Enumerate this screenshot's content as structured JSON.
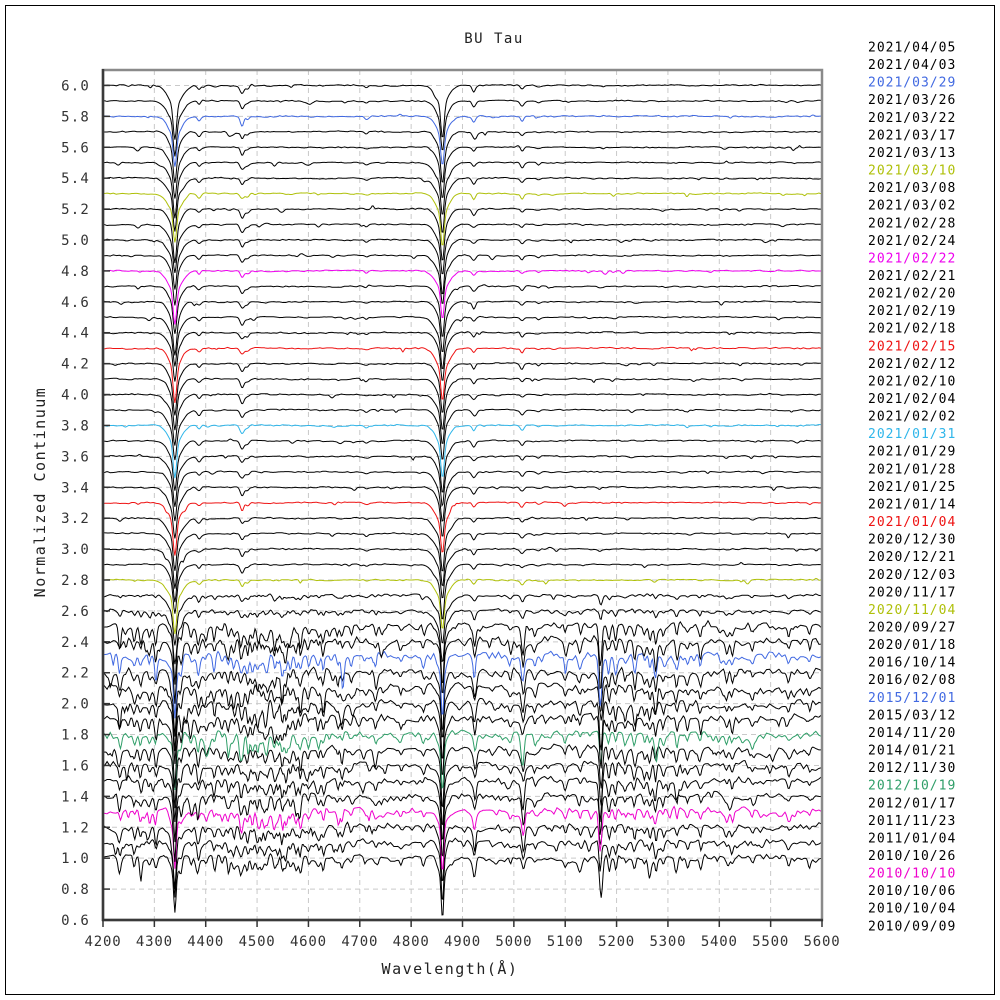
{
  "chart_data": {
    "type": "line",
    "title": "BU Tau",
    "xlabel": "Wavelength(Å)",
    "ylabel": "Normalized Continuum",
    "xlim": [
      4200,
      5600
    ],
    "ylim": [
      0.6,
      6.1
    ],
    "grid": true,
    "x_ticks": [
      4200,
      4300,
      4400,
      4500,
      4600,
      4700,
      4800,
      4900,
      5000,
      5100,
      5200,
      5300,
      5400,
      5500,
      5600
    ],
    "y_ticks": [
      0.6,
      0.8,
      1.0,
      1.2,
      1.4,
      1.6,
      1.8,
      2.0,
      2.2,
      2.4,
      2.6,
      2.8,
      3.0,
      3.2,
      3.4,
      3.6,
      3.8,
      4.0,
      4.2,
      4.4,
      4.6,
      4.8,
      5.0,
      5.2,
      5.4,
      5.6,
      5.8,
      6.0
    ],
    "description": "Time series of normalized spectra of BU Tau, vertically offset by 0.1; date labels listed top-to-bottom on the right edge match the spectra top-to-bottom",
    "balmer_lines": [
      {
        "name": "H-gamma",
        "center": 4340
      },
      {
        "name": "H-beta",
        "center": 4861
      }
    ],
    "be_phase_lines": [
      [
        4387,
        0.025
      ],
      [
        4471,
        0.045
      ],
      [
        4481,
        0.018
      ],
      [
        4713,
        0.012
      ],
      [
        4922,
        0.032
      ],
      [
        5016,
        0.026
      ],
      [
        5048,
        0.01
      ]
    ],
    "shell_phase_lines": [
      [
        4233,
        0.1
      ],
      [
        4179,
        0.06
      ],
      [
        4261,
        0.06
      ],
      [
        4273,
        0.07
      ],
      [
        4290,
        0.06
      ],
      [
        4303,
        0.09
      ],
      [
        4352,
        0.09
      ],
      [
        4372,
        0.06
      ],
      [
        4385,
        0.08
      ],
      [
        4400,
        0.05
      ],
      [
        4417,
        0.08
      ],
      [
        4432,
        0.05
      ],
      [
        4444,
        0.07
      ],
      [
        4455,
        0.06
      ],
      [
        4468,
        0.07
      ],
      [
        4482,
        0.08
      ],
      [
        4491,
        0.06
      ],
      [
        4501,
        0.08
      ],
      [
        4508,
        0.06
      ],
      [
        4515,
        0.08
      ],
      [
        4520,
        0.07
      ],
      [
        4534,
        0.08
      ],
      [
        4541,
        0.06
      ],
      [
        4549,
        0.11
      ],
      [
        4556,
        0.09
      ],
      [
        4564,
        0.06
      ],
      [
        4576,
        0.08
      ],
      [
        4584,
        0.11
      ],
      [
        4600,
        0.05
      ],
      [
        4620,
        0.06
      ],
      [
        4629,
        0.08
      ],
      [
        4657,
        0.05
      ],
      [
        4666,
        0.06
      ],
      [
        4684,
        0.04
      ],
      [
        4731,
        0.06
      ],
      [
        4780,
        0.04
      ],
      [
        4824,
        0.05
      ],
      [
        4924,
        0.11
      ],
      [
        4993,
        0.05
      ],
      [
        5018,
        0.13
      ],
      [
        5041,
        0.05
      ],
      [
        5100,
        0.06
      ],
      [
        5129,
        0.05
      ],
      [
        5169,
        0.24
      ],
      [
        5185,
        0.09
      ],
      [
        5198,
        0.08
      ],
      [
        5217,
        0.06
      ],
      [
        5235,
        0.09
      ],
      [
        5254,
        0.06
      ],
      [
        5265,
        0.08
      ],
      [
        5276,
        0.1
      ],
      [
        5291,
        0.06
      ],
      [
        5317,
        0.09
      ],
      [
        5338,
        0.05
      ],
      [
        5363,
        0.07
      ],
      [
        5414,
        0.05
      ],
      [
        5425,
        0.06
      ],
      [
        5465,
        0.04
      ],
      [
        5535,
        0.05
      ],
      [
        5576,
        0.04
      ]
    ],
    "series": [
      {
        "date": "2021/04/05",
        "color": "#000000",
        "offset": 6.0,
        "shell": 0
      },
      {
        "date": "2021/04/03",
        "color": "#000000",
        "offset": 5.9,
        "shell": 0
      },
      {
        "date": "2021/03/29",
        "color": "#4169E1",
        "offset": 5.8,
        "shell": 0
      },
      {
        "date": "2021/03/26",
        "color": "#000000",
        "offset": 5.7,
        "shell": 0
      },
      {
        "date": "2021/03/22",
        "color": "#000000",
        "offset": 5.6,
        "shell": 0
      },
      {
        "date": "2021/03/17",
        "color": "#000000",
        "offset": 5.5,
        "shell": 0
      },
      {
        "date": "2021/03/13",
        "color": "#000000",
        "offset": 5.4,
        "shell": 0
      },
      {
        "date": "2021/03/10",
        "color": "#AFC00A",
        "offset": 5.3,
        "shell": 0
      },
      {
        "date": "2021/03/08",
        "color": "#000000",
        "offset": 5.2,
        "shell": 0
      },
      {
        "date": "2021/03/02",
        "color": "#000000",
        "offset": 5.1,
        "shell": 0
      },
      {
        "date": "2021/02/28",
        "color": "#000000",
        "offset": 5.0,
        "shell": 0
      },
      {
        "date": "2021/02/24",
        "color": "#000000",
        "offset": 4.9,
        "shell": 0
      },
      {
        "date": "2021/02/22",
        "color": "#EE00EE",
        "offset": 4.8,
        "shell": 0
      },
      {
        "date": "2021/02/21",
        "color": "#000000",
        "offset": 4.7,
        "shell": 0
      },
      {
        "date": "2021/02/20",
        "color": "#000000",
        "offset": 4.6,
        "shell": 0
      },
      {
        "date": "2021/02/19",
        "color": "#000000",
        "offset": 4.5,
        "shell": 0
      },
      {
        "date": "2021/02/18",
        "color": "#000000",
        "offset": 4.4,
        "shell": 0
      },
      {
        "date": "2021/02/15",
        "color": "#EE1212",
        "offset": 4.3,
        "shell": 0
      },
      {
        "date": "2021/02/12",
        "color": "#000000",
        "offset": 4.2,
        "shell": 0
      },
      {
        "date": "2021/02/10",
        "color": "#000000",
        "offset": 4.1,
        "shell": 0
      },
      {
        "date": "2021/02/04",
        "color": "#000000",
        "offset": 4.0,
        "shell": 0
      },
      {
        "date": "2021/02/02",
        "color": "#000000",
        "offset": 3.9,
        "shell": 0
      },
      {
        "date": "2021/01/31",
        "color": "#2FB6EA",
        "offset": 3.8,
        "shell": 0
      },
      {
        "date": "2021/01/29",
        "color": "#000000",
        "offset": 3.7,
        "shell": 0
      },
      {
        "date": "2021/01/28",
        "color": "#000000",
        "offset": 3.6,
        "shell": 0
      },
      {
        "date": "2021/01/25",
        "color": "#000000",
        "offset": 3.5,
        "shell": 0
      },
      {
        "date": "2021/01/14",
        "color": "#000000",
        "offset": 3.4,
        "shell": 0
      },
      {
        "date": "2021/01/04",
        "color": "#EE1212",
        "offset": 3.3,
        "shell": 0
      },
      {
        "date": "2020/12/30",
        "color": "#000000",
        "offset": 3.2,
        "shell": 0
      },
      {
        "date": "2020/12/21",
        "color": "#000000",
        "offset": 3.1,
        "shell": 0
      },
      {
        "date": "2020/12/03",
        "color": "#000000",
        "offset": 3.0,
        "shell": 0
      },
      {
        "date": "2020/11/17",
        "color": "#000000",
        "offset": 2.9,
        "shell": 0
      },
      {
        "date": "2020/11/04",
        "color": "#AFC00A",
        "offset": 2.8,
        "shell": 0
      },
      {
        "date": "2020/09/27",
        "color": "#000000",
        "offset": 2.7,
        "shell": 0.18
      },
      {
        "date": "2020/01/18",
        "color": "#000000",
        "offset": 2.6,
        "shell": 0.3
      },
      {
        "date": "2016/10/14",
        "color": "#000000",
        "offset": 2.5,
        "shell": 0.95
      },
      {
        "date": "2016/02/08",
        "color": "#000000",
        "offset": 2.4,
        "shell": 1.0
      },
      {
        "date": "2015/12/01",
        "color": "#4169E1",
        "offset": 2.3,
        "shell": 1.0
      },
      {
        "date": "2015/03/12",
        "color": "#000000",
        "offset": 2.2,
        "shell": 1.0
      },
      {
        "date": "2014/11/20",
        "color": "#000000",
        "offset": 2.1,
        "shell": 1.0
      },
      {
        "date": "2014/01/21",
        "color": "#000000",
        "offset": 2.0,
        "shell": 1.0
      },
      {
        "date": "2012/11/30",
        "color": "#000000",
        "offset": 1.9,
        "shell": 1.0
      },
      {
        "date": "2012/10/19",
        "color": "#2F9E68",
        "offset": 1.8,
        "shell": 0.95
      },
      {
        "date": "2012/01/17",
        "color": "#000000",
        "offset": 1.7,
        "shell": 0.9
      },
      {
        "date": "2011/11/23",
        "color": "#000000",
        "offset": 1.6,
        "shell": 0.85
      },
      {
        "date": "2011/01/04",
        "color": "#000000",
        "offset": 1.5,
        "shell": 0.85
      },
      {
        "date": "2010/10/26",
        "color": "#000000",
        "offset": 1.4,
        "shell": 0.85
      },
      {
        "date": "2010/10/10",
        "color": "#EE00CC",
        "offset": 1.3,
        "shell": 0.8
      },
      {
        "date": "2010/10/06",
        "color": "#000000",
        "offset": 1.2,
        "shell": 0.8
      },
      {
        "date": "2010/10/04",
        "color": "#000000",
        "offset": 1.1,
        "shell": 0.8
      },
      {
        "date": "2010/09/09",
        "color": "#000000",
        "offset": 1.0,
        "shell": 0.8
      }
    ],
    "colors": {
      "grid": "#c9c9c9",
      "border_top_right": "#8a8a8a",
      "border_left_bottom": "#3a3a3a",
      "tick_text": "#333333"
    }
  }
}
